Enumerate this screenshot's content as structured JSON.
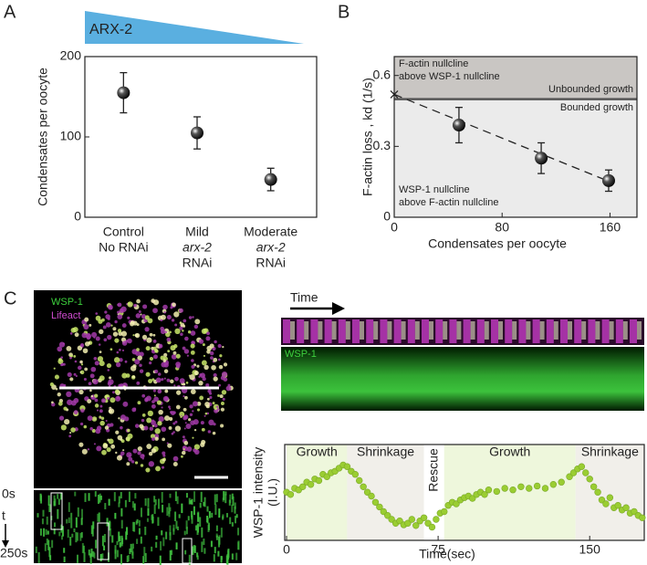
{
  "panels": {
    "a": "A",
    "b": "B",
    "c": "C"
  },
  "images": {
    "merge_labels": [
      "WSP-1",
      "Lifeact"
    ],
    "kymo_time": "Time",
    "kymo_label": "WSP-1",
    "kymo_start": "0s",
    "kymo_axis": "t",
    "kymo_end": "250s"
  },
  "chart_data": [
    {
      "type": "scatter",
      "banner": "ARX-2",
      "ylabel": "Condensates per oocyte",
      "categories": [
        [
          "Control",
          "No RNAi"
        ],
        [
          "Mild",
          "arx-2",
          "RNAi"
        ],
        [
          "Moderate",
          "arx-2",
          "RNAi"
        ]
      ],
      "values": [
        155,
        105,
        47
      ],
      "errors": [
        25,
        20,
        14
      ],
      "color": "#111111",
      "ylim": [
        0,
        200
      ],
      "yticks": [
        0,
        100,
        200
      ]
    },
    {
      "type": "scatter",
      "xlabel": "Condensates per oocyte",
      "ylabel": "F-actin loss , kd (1/s)",
      "x": [
        48,
        109,
        159
      ],
      "values": [
        0.39,
        0.25,
        0.155
      ],
      "errors": [
        0.075,
        0.065,
        0.045
      ],
      "color": "#111111",
      "xlim": [
        0,
        180
      ],
      "ylim": [
        0,
        0.68
      ],
      "xticks": [
        0,
        80,
        160
      ],
      "yticks": [
        0,
        0.3,
        0.6
      ],
      "threshold": 0.5,
      "fit": {
        "x": [
          0,
          160
        ],
        "y": [
          0.52,
          0.15
        ]
      },
      "annotations": [
        "F-actin nullcline",
        "above WSP-1 nullcline",
        "Unbounded growth",
        "Bounded growth",
        "WSP-1 nullcline",
        "above F-actin nullcline"
      ]
    },
    {
      "type": "scatter",
      "xlabel": "Time(sec)",
      "ylabel": [
        "WSP-1 intensity",
        "(I.U.)"
      ],
      "color": "#9acd32",
      "xlim": [
        0,
        177
      ],
      "ylim": [
        0,
        1
      ],
      "xticks": [
        0,
        75,
        150
      ],
      "phases": [
        {
          "label": "Growth",
          "start": 0,
          "end": 30,
          "color": "#eef7dc"
        },
        {
          "label": "Shrinkage",
          "start": 30,
          "end": 68,
          "color": "#f1efea"
        },
        {
          "label": "Rescue",
          "start": 68,
          "end": 78,
          "color": "#ffffff"
        },
        {
          "label": "Growth",
          "start": 78,
          "end": 143,
          "color": "#eef7dc"
        },
        {
          "label": "Shrinkage",
          "start": 143,
          "end": 177,
          "color": "#f1efea"
        }
      ],
      "x": [
        0,
        2,
        4,
        6,
        8,
        10,
        12,
        14,
        16,
        18,
        20,
        22,
        24,
        26,
        28,
        30,
        32,
        34,
        36,
        38,
        40,
        42,
        44,
        46,
        48,
        50,
        52,
        54,
        56,
        58,
        60,
        62,
        64,
        66,
        68,
        70,
        72,
        74,
        76,
        78,
        80,
        82,
        84,
        86,
        88,
        90,
        92,
        94,
        96,
        98,
        100,
        104,
        108,
        112,
        116,
        120,
        124,
        128,
        132,
        136,
        140,
        142,
        144,
        146,
        148,
        150,
        152,
        154,
        156,
        158,
        160,
        162,
        164,
        166,
        168,
        170,
        172,
        174,
        176
      ],
      "values": [
        0.55,
        0.52,
        0.6,
        0.58,
        0.62,
        0.68,
        0.65,
        0.72,
        0.7,
        0.78,
        0.75,
        0.8,
        0.82,
        0.86,
        0.9,
        0.88,
        0.82,
        0.78,
        0.7,
        0.62,
        0.55,
        0.5,
        0.42,
        0.36,
        0.3,
        0.25,
        0.2,
        0.15,
        0.18,
        0.13,
        0.15,
        0.2,
        0.12,
        0.18,
        0.22,
        0.15,
        0.1,
        0.2,
        0.28,
        0.3,
        0.38,
        0.42,
        0.4,
        0.45,
        0.48,
        0.5,
        0.47,
        0.52,
        0.55,
        0.52,
        0.58,
        0.56,
        0.6,
        0.58,
        0.62,
        0.6,
        0.63,
        0.6,
        0.65,
        0.68,
        0.75,
        0.8,
        0.85,
        0.88,
        0.8,
        0.72,
        0.62,
        0.55,
        0.45,
        0.4,
        0.48,
        0.35,
        0.38,
        0.32,
        0.35,
        0.28,
        0.3,
        0.25,
        0.22
      ]
    }
  ]
}
